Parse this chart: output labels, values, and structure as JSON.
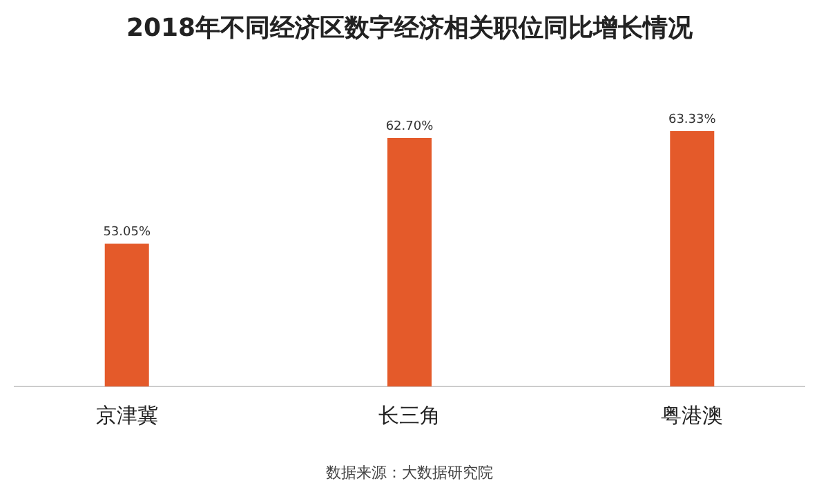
{
  "chart_data": {
    "type": "bar",
    "title": "2018年不同经济区数字经济相关职位同比增长情况",
    "categories": [
      "京津冀",
      "长三角",
      "粤港澳"
    ],
    "values": [
      53.05,
      62.7,
      63.33
    ],
    "value_labels": [
      "53.05%",
      "62.70%",
      "63.33%"
    ],
    "color": "#e45a2a",
    "ylim": [
      40,
      63.33
    ],
    "annotations": [
      "数据来源：大数据研究院"
    ]
  }
}
